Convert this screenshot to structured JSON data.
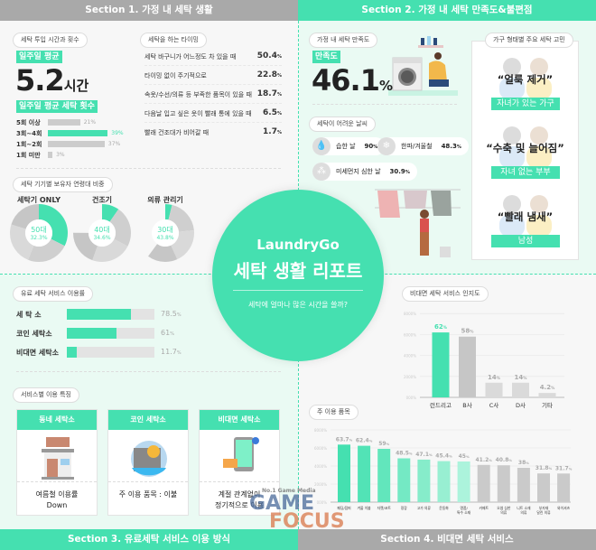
{
  "colors": {
    "accent": "#45e0b0",
    "gray_header": "#a9a9a9",
    "bar_gray": "#c8c8c8"
  },
  "sections": {
    "s1": "Section 1. 가정 내 세탁 생활",
    "s2": "Section 2. 가정 내 세탁 만족도&불편점",
    "s3": "Section 3. 유료세탁 서비스 이용 방식",
    "s4": "Section 4. 비대면 세탁 서비스"
  },
  "s1": {
    "time_pill": "세탁 투입 시간과 횟수",
    "avg_tag": "일주일 평균",
    "avg_value": "5.2",
    "avg_unit": "시간",
    "count_tag": "일주일 평균 세탁 횟수",
    "counts": [
      {
        "label": "5회 이상",
        "value": 21,
        "text": "21%",
        "highlight": false
      },
      {
        "label": "3회~4회",
        "value": 39,
        "text": "39%",
        "highlight": true
      },
      {
        "label": "1회~2회",
        "value": 37,
        "text": "37%",
        "highlight": false
      },
      {
        "label": "1회 미만",
        "value": 3,
        "text": "3%",
        "highlight": false
      }
    ],
    "timing_pill": "세탁을 하는 타이밍",
    "timing": [
      {
        "label": "세탁 바구니가 어느정도 차 있을 때",
        "value": "50.4"
      },
      {
        "label": "타이밍 없이 주기적으로",
        "value": "22.8"
      },
      {
        "label": "속옷/수선/의류 등 부족한 품목이 있을 때",
        "value": "18.7"
      },
      {
        "label": "다음날 입고 싶은 옷이 빨래 통에 있을 때",
        "value": "6.5"
      },
      {
        "label": "빨래 건조대가 비어갈 때",
        "value": "1.7"
      }
    ],
    "device_pill": "세탁 기기별 보유자 연령대 비중",
    "devices": [
      {
        "title": "세탁기 ONLY",
        "age": "50대",
        "pct": "32.3%",
        "value": 32.3
      },
      {
        "title": "건조기",
        "age": "40대",
        "pct": "34.6%",
        "value": 34.6
      },
      {
        "title": "의류 관리기",
        "age": "30대",
        "pct": "43.8%",
        "value": 43.8
      }
    ]
  },
  "s2": {
    "sat_pill": "가정 내 세탁 만족도",
    "sat_tag": "만족도",
    "sat_value": "46.1",
    "sat_unit": "%",
    "weather_pill": "세탁이 어려운 날씨",
    "weather": [
      {
        "icon": "water-drop-icon",
        "glyph": "💧",
        "label": "습한 날",
        "value": "90"
      },
      {
        "icon": "snowflake-icon",
        "glyph": "❄",
        "label": "한파/겨울철",
        "value": "48.3"
      },
      {
        "icon": "dust-icon",
        "glyph": "⁂",
        "label": "미세먼지 심한 날",
        "value": "30.9"
      }
    ],
    "household_pill": "가구 형태별 주요 세탁 고민",
    "households": [
      {
        "quote": "“얼룩 제거”",
        "label": "자녀가 있는 가구"
      },
      {
        "quote": "“수축 및 늘어짐”",
        "label": "자녀 없는 부부"
      },
      {
        "quote": "“빨래 냄새”",
        "label": "남성"
      }
    ]
  },
  "center": {
    "brand": "LaundryGo",
    "title": "세탁 생활 리포트",
    "subtitle": "세탁에 얼마나 많은 시간을 쓸까?"
  },
  "s3": {
    "usage_pill": "유료 세탁 서비스 이용률",
    "usage": [
      {
        "label": "세 탁 소",
        "value": 78.5,
        "text": "78.5"
      },
      {
        "label": "코인 세탁소",
        "value": 61,
        "text": "61"
      },
      {
        "label": "비대면 세탁소",
        "value": 11.7,
        "text": "11.7"
      }
    ],
    "feature_pill": "서비스별 이용 특징",
    "cards": [
      {
        "title": "동네 세탁소",
        "icon": "laundry-shop-icon",
        "text": "여름철 이용률\nDown"
      },
      {
        "title": "코인 세탁소",
        "icon": "coin-laundry-icon",
        "text": "주 이용 품목 : 이불"
      },
      {
        "title": "비대면 세탁소",
        "icon": "smartphone-icon",
        "text": "계절 관계없이\n정기적으로 이용"
      }
    ]
  },
  "s4": {
    "aware_pill": "비대면 세탁 서비스 인지도",
    "items_pill": "주 이용 품목"
  },
  "chart_data": [
    {
      "type": "bar",
      "title": "비대면 세탁 서비스 인지도",
      "ylim": [
        0,
        80
      ],
      "yticks": [
        "000%",
        "2000%",
        "4000%",
        "6000%",
        "8000%"
      ],
      "categories": [
        "런드리고",
        "B사",
        "C사",
        "D사",
        "기타"
      ],
      "values": [
        62,
        58,
        14,
        14,
        4.2
      ],
      "labels": [
        "62",
        "58",
        "14",
        "14",
        "4.2"
      ]
    },
    {
      "type": "bar",
      "title": "주 이용 품목",
      "ylim": [
        0,
        80
      ],
      "yticks": [
        "000%",
        "2000%",
        "4000%",
        "6000%",
        "8000%"
      ],
      "categories": [
        "패딩/점퍼",
        "겨울 이불",
        "자켓/코트",
        "정장",
        "고가 의류",
        "운동화",
        "명품/\n특수 소재",
        "카페트",
        "오염 심한\n의류",
        "니트 소재\n의류",
        "부자재\n달린 의류",
        "와이셔츠"
      ],
      "values": [
        63.7,
        62.4,
        59,
        48.5,
        47.1,
        45.4,
        45,
        41.2,
        40.8,
        38,
        31.8,
        31.7
      ],
      "labels": [
        "63.7",
        "62.4",
        "59",
        "48.5",
        "47.1",
        "45.4",
        "45",
        "41.2",
        "40.8",
        "38",
        "31.8",
        "31.7"
      ]
    }
  ],
  "watermark": {
    "line1": "No.1 Game Media",
    "line2": "GAME",
    "line3": "FOCUS"
  }
}
